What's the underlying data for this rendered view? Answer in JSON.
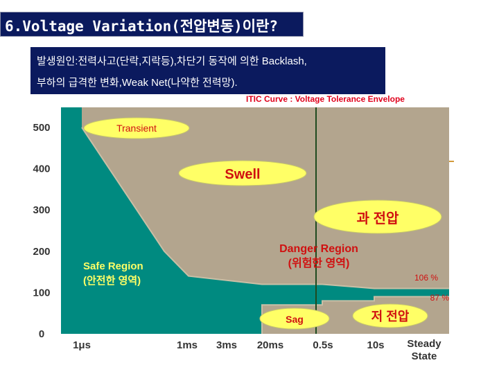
{
  "header": {
    "title": "6.Voltage Variation(전압변동)이란?"
  },
  "description": {
    "line1": "발생원인:전력사고(단락,지락등),차단기 동작에 의한 Backlash,",
    "line2": "부하의 급격한 변화,Weak Net(나약한 전력망)."
  },
  "colors": {
    "title_bg": "#0b1a5e",
    "safe_region": "#008a80",
    "danger_region": "#b3a58e",
    "ellipse_fill": "#ffff66",
    "chart_title": "#e0001b",
    "annotation_red": "#d01010"
  },
  "chart_data": {
    "type": "area",
    "title": "ITIC Curve : Voltage Tolerance Envelope",
    "y_ticks": [
      "500",
      "400",
      "300",
      "200",
      "100",
      "0"
    ],
    "y_tick_values": [
      500,
      400,
      300,
      200,
      100,
      0
    ],
    "x_ticks": [
      "1μs",
      "1ms",
      "3ms",
      "20ms",
      "0.5s",
      "10s",
      "Steady State"
    ],
    "ylim": [
      0,
      500
    ],
    "upper_envelope": [
      {
        "x": "1μs",
        "y": 500
      },
      {
        "x": "1ms",
        "y": 200
      },
      {
        "x": "3ms",
        "y": 140
      },
      {
        "x": "20ms",
        "y": 120
      },
      {
        "x": "0.5s",
        "y": 120
      },
      {
        "x": "10s",
        "y": 110
      },
      {
        "x": "Steady State",
        "y": 110
      }
    ],
    "lower_envelope": [
      {
        "x": "20ms",
        "y": 0
      },
      {
        "x": "20ms",
        "y": 70
      },
      {
        "x": "0.5s",
        "y": 70
      },
      {
        "x": "0.5s",
        "y": 80
      },
      {
        "x": "10s",
        "y": 80
      },
      {
        "x": "10s",
        "y": 90
      },
      {
        "x": "Steady State",
        "y": 90
      }
    ],
    "regions": {
      "safe": "Safe Region\n(안전한 영역)",
      "danger": "Danger Region\n(위험한 영역)"
    },
    "labels": {
      "transient": "Transient",
      "swell": "Swell",
      "overvoltage": "과 전압",
      "sag": "Sag",
      "undervoltage": "저 전압",
      "pct_106": "106 %",
      "pct_87": "87 %"
    }
  }
}
